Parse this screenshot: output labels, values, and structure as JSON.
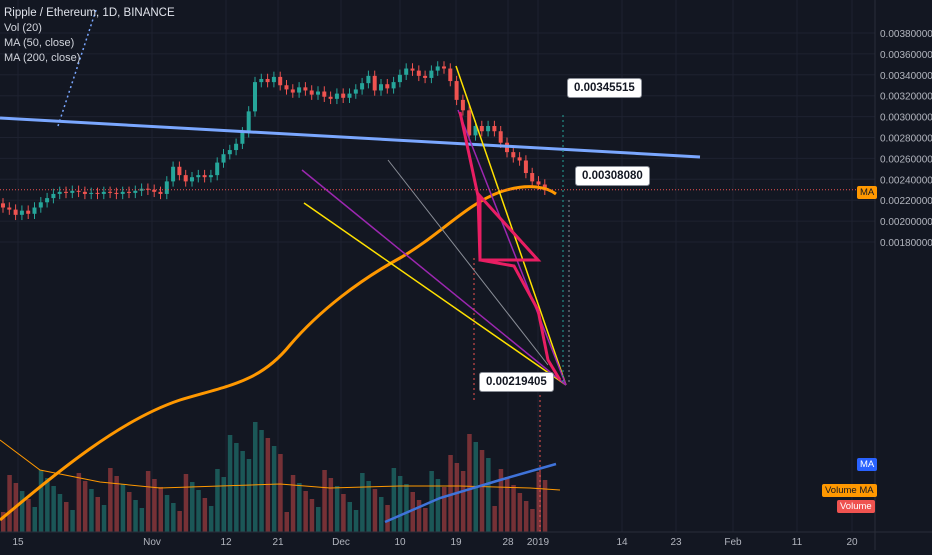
{
  "legend": {
    "title": "Ripple / Ethereum, 1D, BINANCE",
    "vol": "Vol (20)",
    "ma50": "MA (50, close)",
    "ma200": "MA (200, close)"
  },
  "callouts": {
    "high_target": "0.00345515",
    "mid_target": "0.00308080",
    "low_target": "0.00219405"
  },
  "axis_tags": {
    "ma": "MA",
    "ma_blue": "MA",
    "volume_ma": "Volume MA",
    "volume": "Volume"
  },
  "colors": {
    "background": "#131722",
    "up": "#26a69a",
    "down": "#ef5350",
    "ma50": "#ff9800",
    "ma200": "#5b8ee6",
    "trendline": "#7aa7ff",
    "yellow": "#ffe100",
    "purple": "#9c27b0",
    "triangle": "#e91e63"
  },
  "chart_data": {
    "type": "candlestick",
    "ylim": [
      0.00171,
      0.00394
    ],
    "y_ticks": [
      0.0018,
      0.002,
      0.0022,
      0.0024,
      0.0026,
      0.0028,
      0.003,
      0.0032,
      0.0034,
      0.0036,
      0.0038
    ],
    "y_tick_labels": [
      "0.00180000",
      "0.00200000",
      "0.00220000",
      "0.00240000",
      "0.00260000",
      "0.00280000",
      "0.00300000",
      "0.00320000",
      "0.00340000",
      "0.00360000",
      "0.00380000"
    ],
    "x_tick_labels": [
      "15",
      "Nov",
      "12",
      "21",
      "Dec",
      "10",
      "19",
      "28",
      "2019",
      "14",
      "23",
      "Feb",
      "11",
      "20"
    ],
    "last_price": 0.0023,
    "candles": [
      {
        "o": 0.00217,
        "c": 0.00213
      },
      {
        "o": 0.00213,
        "c": 0.00211
      },
      {
        "o": 0.00211,
        "c": 0.00206
      },
      {
        "o": 0.00206,
        "c": 0.0021
      },
      {
        "o": 0.0021,
        "c": 0.00207
      },
      {
        "o": 0.00207,
        "c": 0.00213
      },
      {
        "o": 0.00213,
        "c": 0.00218
      },
      {
        "o": 0.00218,
        "c": 0.00222
      },
      {
        "o": 0.00222,
        "c": 0.00226
      },
      {
        "o": 0.00226,
        "c": 0.00228
      },
      {
        "o": 0.00228,
        "c": 0.00227
      },
      {
        "o": 0.00227,
        "c": 0.00229
      },
      {
        "o": 0.00229,
        "c": 0.00228
      },
      {
        "o": 0.00228,
        "c": 0.00226
      },
      {
        "o": 0.00226,
        "c": 0.00227
      },
      {
        "o": 0.00227,
        "c": 0.00226
      },
      {
        "o": 0.00226,
        "c": 0.00228
      },
      {
        "o": 0.00228,
        "c": 0.00227
      },
      {
        "o": 0.00227,
        "c": 0.00226
      },
      {
        "o": 0.00226,
        "c": 0.00228
      },
      {
        "o": 0.00228,
        "c": 0.00227
      },
      {
        "o": 0.00227,
        "c": 0.00229
      },
      {
        "o": 0.00229,
        "c": 0.00231
      },
      {
        "o": 0.00231,
        "c": 0.0023
      },
      {
        "o": 0.0023,
        "c": 0.00228
      },
      {
        "o": 0.00228,
        "c": 0.00226
      },
      {
        "o": 0.00226,
        "c": 0.00238
      },
      {
        "o": 0.00238,
        "c": 0.00252
      },
      {
        "o": 0.00252,
        "c": 0.00244
      },
      {
        "o": 0.00244,
        "c": 0.00238
      },
      {
        "o": 0.00238,
        "c": 0.00242
      },
      {
        "o": 0.00242,
        "c": 0.00244
      },
      {
        "o": 0.00244,
        "c": 0.00242
      },
      {
        "o": 0.00242,
        "c": 0.00244
      },
      {
        "o": 0.00244,
        "c": 0.00256
      },
      {
        "o": 0.00256,
        "c": 0.00264
      },
      {
        "o": 0.00264,
        "c": 0.00268
      },
      {
        "o": 0.00268,
        "c": 0.00274
      },
      {
        "o": 0.00274,
        "c": 0.00285
      },
      {
        "o": 0.00285,
        "c": 0.00305
      },
      {
        "o": 0.00305,
        "c": 0.00333
      },
      {
        "o": 0.00333,
        "c": 0.00336
      },
      {
        "o": 0.00336,
        "c": 0.00333
      },
      {
        "o": 0.00333,
        "c": 0.00338
      },
      {
        "o": 0.00338,
        "c": 0.0033
      },
      {
        "o": 0.0033,
        "c": 0.00326
      },
      {
        "o": 0.00326,
        "c": 0.00323
      },
      {
        "o": 0.00323,
        "c": 0.00328
      },
      {
        "o": 0.00328,
        "c": 0.00325
      },
      {
        "o": 0.00325,
        "c": 0.00321
      },
      {
        "o": 0.00321,
        "c": 0.00324
      },
      {
        "o": 0.00324,
        "c": 0.00319
      },
      {
        "o": 0.00319,
        "c": 0.00317
      },
      {
        "o": 0.00317,
        "c": 0.00322
      },
      {
        "o": 0.00322,
        "c": 0.00318
      },
      {
        "o": 0.00318,
        "c": 0.00322
      },
      {
        "o": 0.00322,
        "c": 0.00326
      },
      {
        "o": 0.00326,
        "c": 0.00332
      },
      {
        "o": 0.00332,
        "c": 0.00339
      },
      {
        "o": 0.00339,
        "c": 0.00325
      },
      {
        "o": 0.00325,
        "c": 0.00331
      },
      {
        "o": 0.00331,
        "c": 0.00327
      },
      {
        "o": 0.00327,
        "c": 0.00333
      },
      {
        "o": 0.00333,
        "c": 0.0034
      },
      {
        "o": 0.0034,
        "c": 0.00346
      },
      {
        "o": 0.00346,
        "c": 0.00344
      },
      {
        "o": 0.00344,
        "c": 0.00339
      },
      {
        "o": 0.00339,
        "c": 0.00337
      },
      {
        "o": 0.00337,
        "c": 0.00344
      },
      {
        "o": 0.00344,
        "c": 0.00348
      },
      {
        "o": 0.00348,
        "c": 0.00346
      },
      {
        "o": 0.00346,
        "c": 0.00334
      },
      {
        "o": 0.00334,
        "c": 0.00316
      },
      {
        "o": 0.00316,
        "c": 0.00306
      },
      {
        "o": 0.00306,
        "c": 0.00282
      },
      {
        "o": 0.00282,
        "c": 0.00291
      },
      {
        "o": 0.00291,
        "c": 0.00286
      },
      {
        "o": 0.00286,
        "c": 0.00291
      },
      {
        "o": 0.00291,
        "c": 0.00286
      },
      {
        "o": 0.00286,
        "c": 0.00275
      },
      {
        "o": 0.00275,
        "c": 0.00266
      },
      {
        "o": 0.00266,
        "c": 0.00261
      },
      {
        "o": 0.00261,
        "c": 0.00258
      },
      {
        "o": 0.00258,
        "c": 0.00246
      },
      {
        "o": 0.00246,
        "c": 0.00238
      },
      {
        "o": 0.00238,
        "c": 0.00235
      },
      {
        "o": 0.00235,
        "c": 0.0023
      }
    ]
  }
}
